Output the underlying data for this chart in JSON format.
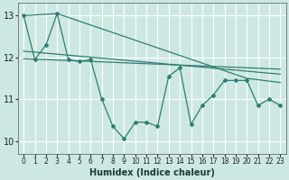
{
  "xlabel": "Humidex (Indice chaleur)",
  "bg_color": "#cde8e2",
  "grid_color": "#ffffff",
  "line_color": "#2e7d72",
  "xlim": [
    -0.5,
    23.5
  ],
  "ylim": [
    9.7,
    13.3
  ],
  "yticks": [
    10,
    11,
    12,
    13
  ],
  "xticks": [
    0,
    1,
    2,
    3,
    4,
    5,
    6,
    7,
    8,
    9,
    10,
    11,
    12,
    13,
    14,
    15,
    16,
    17,
    18,
    19,
    20,
    21,
    22,
    23
  ],
  "zigzag_x": [
    0,
    1,
    2,
    3,
    4,
    5,
    6,
    7,
    8,
    9,
    10,
    11,
    12,
    13,
    14,
    15,
    16,
    17,
    18,
    19,
    20,
    21,
    22,
    23
  ],
  "zigzag_y": [
    13.0,
    11.95,
    12.3,
    13.05,
    11.95,
    11.9,
    11.95,
    11.0,
    10.35,
    10.05,
    10.45,
    10.45,
    10.35,
    11.55,
    11.75,
    10.4,
    10.85,
    11.1,
    11.45,
    11.45,
    11.45,
    10.85,
    11.0,
    10.85
  ],
  "line1_x": [
    0,
    3,
    20,
    23
  ],
  "line1_y": [
    13.0,
    13.05,
    11.5,
    11.4
  ],
  "line2_x": [
    0,
    23
  ],
  "line2_y": [
    12.15,
    11.6
  ],
  "line3_x": [
    0,
    23
  ],
  "line3_y": [
    11.97,
    11.72
  ]
}
